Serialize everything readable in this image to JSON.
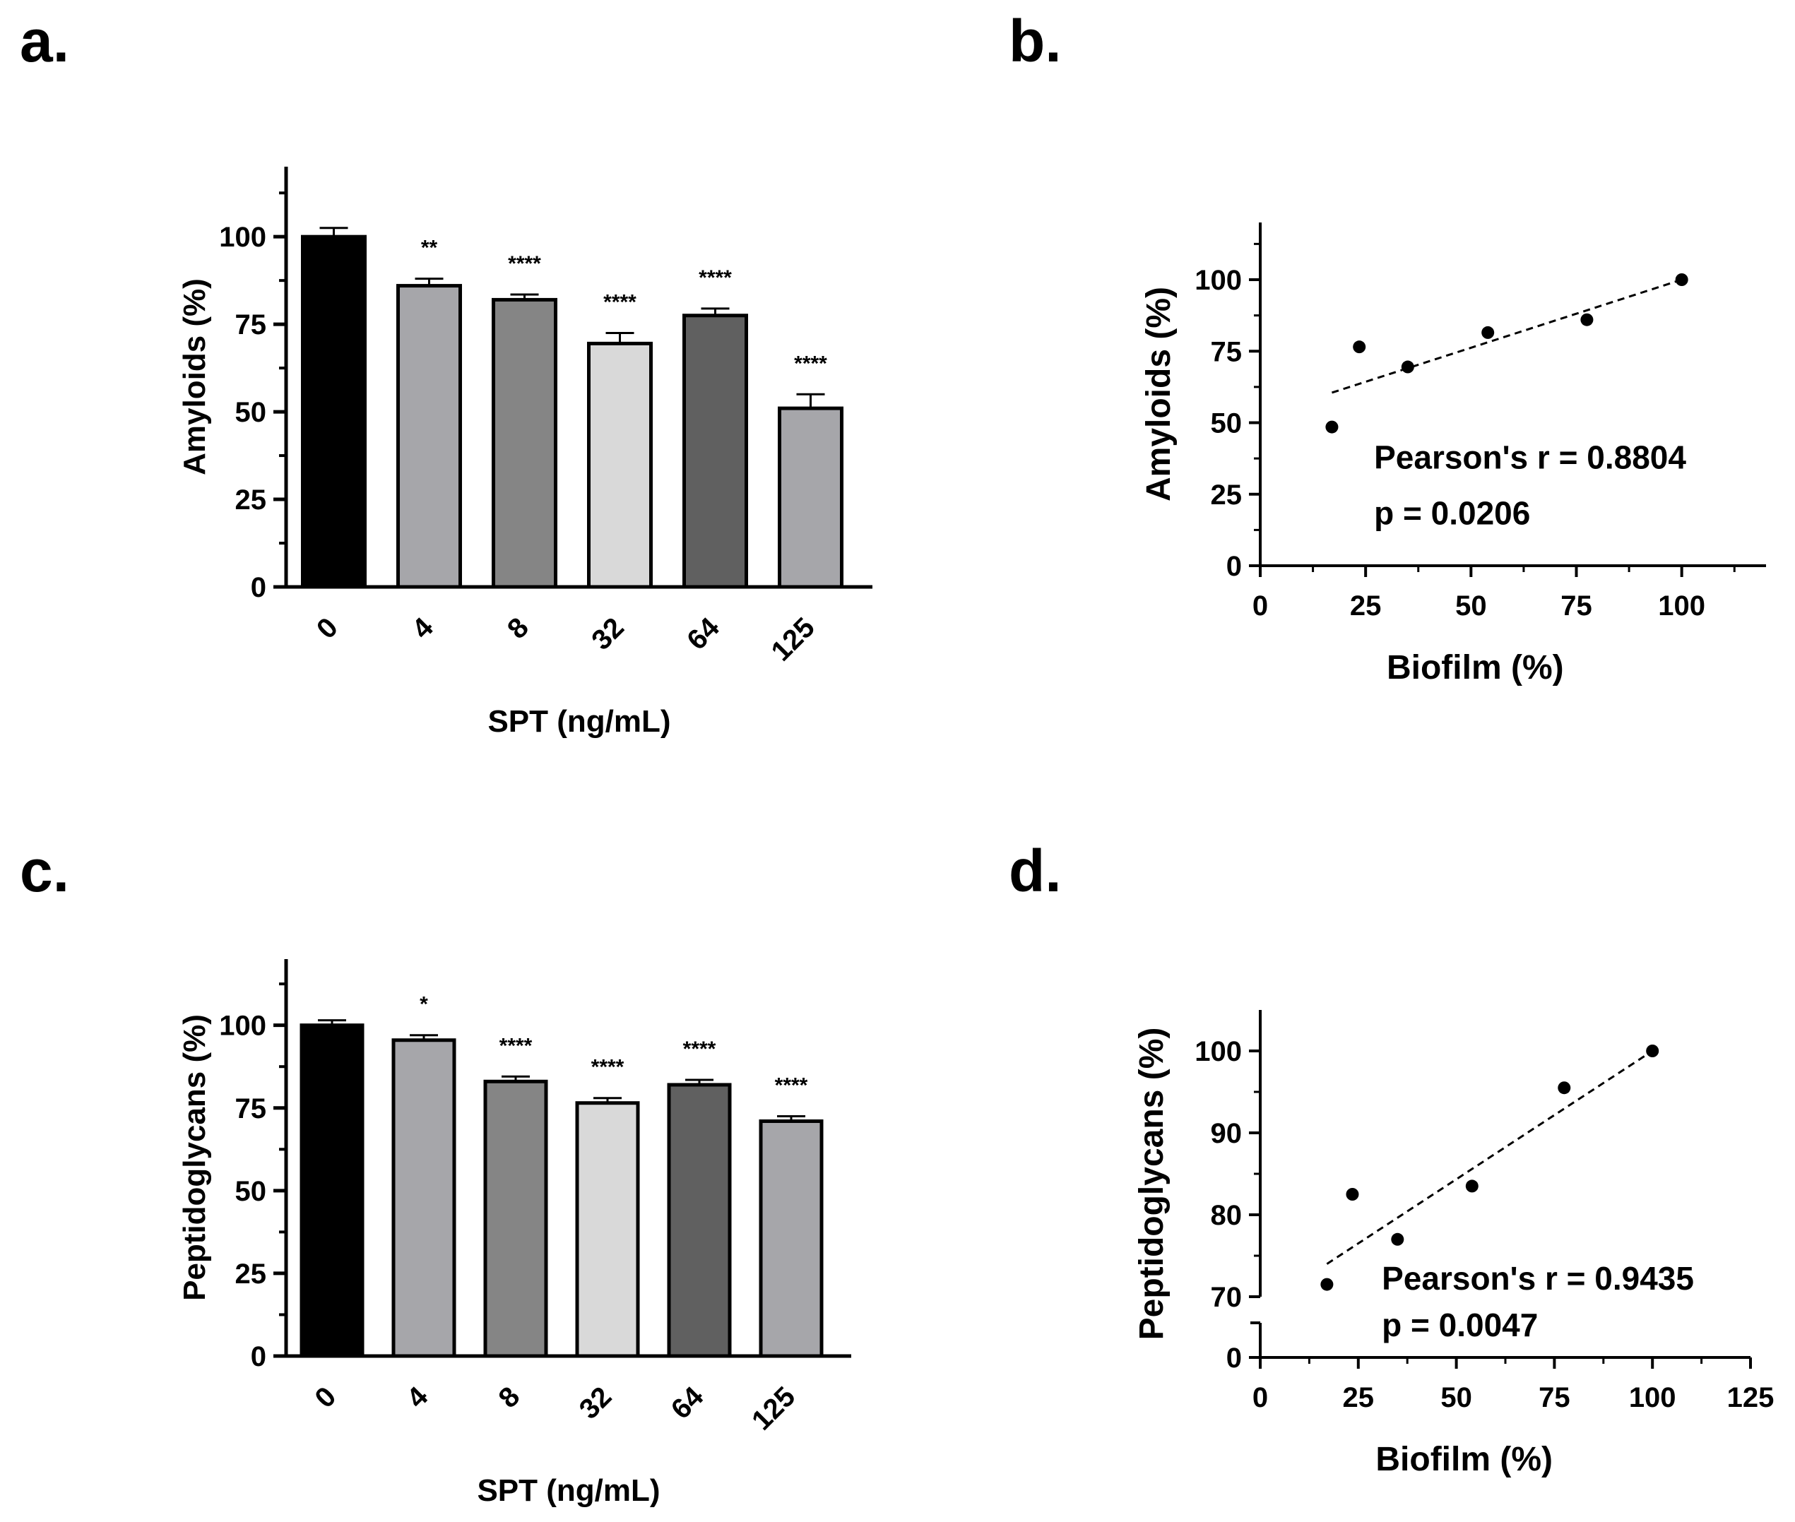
{
  "panels": {
    "a": "a.",
    "b": "b.",
    "c": "c.",
    "d": "d."
  },
  "chart_data": [
    {
      "id": "a",
      "type": "bar",
      "title": "",
      "xlabel": "SPT (ng/mL)",
      "ylabel": "Amyloids (%)",
      "categories": [
        "0",
        "4",
        "8",
        "32",
        "64",
        "125"
      ],
      "values": [
        100,
        86,
        82,
        69.5,
        77.5,
        51
      ],
      "errors": [
        2.5,
        2,
        1.5,
        3,
        2,
        4
      ],
      "significance": [
        "",
        "**",
        "****",
        "****",
        "****",
        "****"
      ],
      "colors": [
        "#000000",
        "#a6a6aa",
        "#858585",
        "#d9d9d9",
        "#606060",
        "#a6a6aa"
      ],
      "yticks": [
        0,
        25,
        50,
        75,
        100
      ],
      "ylim": [
        0,
        120
      ]
    },
    {
      "id": "b",
      "type": "scatter",
      "xlabel": "Biofilm (%)",
      "ylabel": "Amyloids (%)",
      "x": [
        17,
        23.5,
        35,
        54,
        77.5,
        100
      ],
      "y": [
        48.5,
        76.5,
        69.5,
        81.5,
        86,
        100
      ],
      "fit_line": {
        "x": [
          17,
          100
        ],
        "y": [
          60.5,
          100
        ]
      },
      "xticks": [
        0,
        25,
        50,
        75,
        100
      ],
      "yticks": [
        0,
        25,
        50,
        75,
        100
      ],
      "xlim": [
        0,
        120
      ],
      "ylim": [
        0,
        120
      ],
      "annotation_line1": "Pearson's  r = 0.8804",
      "annotation_line2": "p = 0.0206"
    },
    {
      "id": "c",
      "type": "bar",
      "title": "",
      "xlabel": "SPT (ng/mL)",
      "ylabel": "Peptidoglycans (%)",
      "categories": [
        "0",
        "4",
        "8",
        "32",
        "64",
        "125"
      ],
      "values": [
        100,
        95.5,
        83,
        76.5,
        82,
        71
      ],
      "errors": [
        1.5,
        1.5,
        1.5,
        1.5,
        1.5,
        1.5
      ],
      "significance": [
        "",
        "*",
        "****",
        "****",
        "****",
        "****"
      ],
      "colors": [
        "#000000",
        "#a6a6aa",
        "#858585",
        "#d9d9d9",
        "#606060",
        "#a6a6aa"
      ],
      "yticks": [
        0,
        25,
        50,
        75,
        100
      ],
      "ylim": [
        0,
        120
      ]
    },
    {
      "id": "d",
      "type": "scatter",
      "xlabel": "Biofilm (%)",
      "ylabel": "Peptidoglycans (%)",
      "x": [
        17,
        23.5,
        35,
        54,
        77.5,
        100
      ],
      "y": [
        71.5,
        82.5,
        77,
        83.5,
        95.5,
        100
      ],
      "fit_line": {
        "x": [
          17,
          100
        ],
        "y": [
          74,
          100
        ]
      },
      "xticks": [
        0,
        25,
        50,
        75,
        100,
        125
      ],
      "yticks_upper": [
        70,
        80,
        90,
        100
      ],
      "ylim_upper": [
        70,
        105
      ],
      "yticks_lower": [
        0
      ],
      "ylim_lower": [
        0,
        7
      ],
      "xlim": [
        0,
        125
      ],
      "axis_break": true,
      "annotation_line1": "Pearson's  r = 0.9435",
      "annotation_line2": "p = 0.0047"
    }
  ]
}
